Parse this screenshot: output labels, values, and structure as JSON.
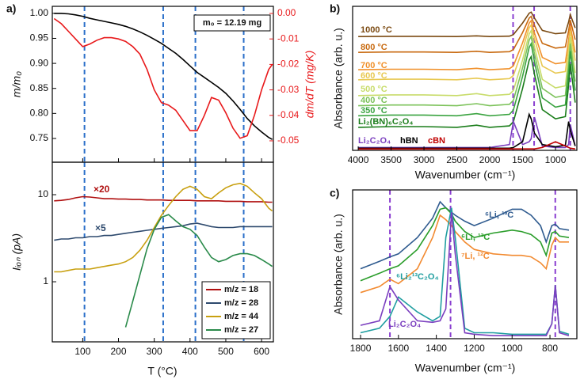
{
  "chart_data": [
    {
      "type": "line",
      "label": "a)",
      "ylabel": "m/m₀",
      "y2label": "dm/dT (mg/K)",
      "annotation": "m₀ = 12.19 mg",
      "x": [
        20,
        40,
        60,
        80,
        100,
        120,
        140,
        160,
        180,
        200,
        220,
        240,
        260,
        280,
        300,
        320,
        340,
        360,
        380,
        400,
        420,
        440,
        460,
        480,
        500,
        520,
        540,
        560,
        580,
        600,
        620,
        630
      ],
      "xlim": [
        15,
        633
      ],
      "ylim": [
        0.7025,
        1.014
      ],
      "yticks": [
        0.75,
        {
          "value": 0.8,
          "label": "0.80"
        },
        0.85,
        {
          "value": 0.9,
          "label": "0.90"
        },
        0.95,
        {
          "value": 1,
          "label": "1.00"
        }
      ],
      "y2lim": [
        -0.0584,
        0.0028
      ],
      "y2ticks": [
        -0.05,
        -0.04,
        -0.03,
        -0.02,
        -0.01,
        {
          "value": 0,
          "label": "0.00"
        }
      ],
      "vlines": [
        105,
        325,
        415,
        550
      ],
      "vline_color": "#2a6fc9",
      "series": [
        {
          "color": "#000000",
          "values": [
            1.0,
            1.0,
            0.999,
            0.997,
            0.994,
            0.99,
            0.987,
            0.984,
            0.981,
            0.978,
            0.974,
            0.969,
            0.963,
            0.956,
            0.948,
            0.94,
            0.93,
            0.92,
            0.908,
            0.895,
            0.882,
            0.872,
            0.862,
            0.852,
            0.84,
            0.825,
            0.808,
            0.79,
            0.775,
            0.763,
            0.752,
            0.748
          ]
        },
        {
          "color": "#e8191b",
          "axis": "y2",
          "values": [
            -0.002,
            -0.004,
            -0.007,
            -0.01,
            -0.013,
            -0.012,
            -0.0105,
            -0.0095,
            -0.0095,
            -0.01,
            -0.011,
            -0.013,
            -0.016,
            -0.022,
            -0.03,
            -0.035,
            -0.036,
            -0.038,
            -0.042,
            -0.046,
            -0.046,
            -0.04,
            -0.033,
            -0.034,
            -0.039,
            -0.045,
            -0.049,
            -0.048,
            -0.04,
            -0.03,
            -0.022,
            -0.02
          ]
        }
      ]
    },
    {
      "type": "line",
      "xlabel": "T (°C)",
      "ylabel": "Iᵢₒₙ (pA)",
      "log_y": true,
      "legend": "lower right",
      "annotations": [
        "×20",
        "×5"
      ],
      "x": [
        20,
        40,
        60,
        80,
        100,
        120,
        140,
        160,
        180,
        200,
        220,
        240,
        260,
        280,
        300,
        320,
        340,
        360,
        380,
        400,
        420,
        440,
        460,
        480,
        500,
        520,
        540,
        560,
        580,
        600,
        620,
        630
      ],
      "xlim": [
        15,
        633
      ],
      "xticks": [
        100,
        200,
        300,
        400,
        500,
        600
      ],
      "ylim": [
        0.204,
        23.6
      ],
      "yticks": [
        1,
        10
      ],
      "vlines": [
        105,
        325,
        415,
        550
      ],
      "vline_color": "#2a6fc9",
      "series": [
        {
          "name": "m/z = 18",
          "color": "#b01010",
          "values": [
            8.5,
            8.6,
            8.8,
            9.2,
            9.5,
            9.4,
            9.2,
            9.0,
            9.0,
            8.9,
            8.9,
            8.8,
            8.8,
            8.7,
            8.7,
            8.7,
            8.6,
            8.6,
            8.6,
            8.6,
            8.5,
            8.5,
            8.5,
            8.5,
            8.4,
            8.4,
            8.4,
            8.3,
            8.3,
            8.3,
            8.2,
            8.2
          ]
        },
        {
          "name": "m/z = 28",
          "color": "#2e4a6e",
          "values": [
            3.0,
            3.1,
            3.1,
            3.2,
            3.2,
            3.3,
            3.3,
            3.4,
            3.4,
            3.5,
            3.6,
            3.7,
            3.8,
            3.9,
            4.0,
            4.1,
            4.2,
            4.3,
            4.4,
            4.6,
            4.7,
            4.5,
            4.3,
            4.2,
            4.2,
            4.2,
            4.3,
            4.3,
            4.3,
            4.3,
            4.3,
            4.3
          ]
        },
        {
          "name": "m/z = 44",
          "color": "#c8a010",
          "values": [
            1.3,
            1.3,
            1.35,
            1.4,
            1.4,
            1.4,
            1.45,
            1.5,
            1.55,
            1.6,
            1.7,
            1.9,
            2.3,
            3.0,
            4.2,
            5.8,
            7.5,
            9.5,
            11.5,
            12.5,
            11.5,
            9.5,
            9.0,
            10.5,
            12.0,
            13.0,
            13.5,
            12.5,
            10.5,
            9.0,
            7.0,
            6.5
          ]
        },
        {
          "name": "m/z = 27",
          "color": "#2a8a4a",
          "values": [
            null,
            null,
            null,
            null,
            null,
            null,
            null,
            null,
            null,
            null,
            0.3,
            0.6,
            1.2,
            2.4,
            4.0,
            5.5,
            5.9,
            5.0,
            4.3,
            4.0,
            3.4,
            2.5,
            1.9,
            1.7,
            1.8,
            2.0,
            2.1,
            2.1,
            2.0,
            1.8,
            1.6,
            1.5
          ]
        }
      ]
    },
    {
      "type": "line",
      "label": "b)",
      "xlabel": "Wavenumber (cm⁻¹)",
      "ylabel": "Absorbance (arb. u.)",
      "x": [
        4000,
        3500,
        3000,
        2500,
        2200,
        2000,
        1700,
        1640,
        1500,
        1400,
        1370,
        1320,
        1200,
        1000,
        850,
        800,
        775,
        700
      ],
      "xlim": [
        4085,
        675
      ],
      "xticks": [
        4000,
        3500,
        3000,
        2500,
        2000,
        1500,
        1000
      ],
      "ylim": [
        0,
        10
      ],
      "vlines": [
        1645,
        1325,
        775
      ],
      "vline_color": "#8a3fd0",
      "series": [
        {
          "name": "1000 °C",
          "color": "#7b4a12",
          "values": [
            7.9,
            7.92,
            7.92,
            7.9,
            7.95,
            7.9,
            7.93,
            8.04,
            8.84,
            9.52,
            9.6,
            9.18,
            8.33,
            8.1,
            8.16,
            8.92,
            9.43,
            8.5
          ]
        },
        {
          "name": "800 °C",
          "color": "#c86a10",
          "values": [
            6.8,
            6.83,
            6.83,
            6.8,
            6.88,
            6.8,
            6.85,
            7.0,
            8.18,
            9.18,
            9.3,
            8.68,
            7.43,
            7.1,
            7.18,
            8.3,
            9.05,
            7.68
          ]
        },
        {
          "name": "700 °C",
          "color": "#f0902a",
          "values": [
            5.6,
            5.63,
            5.63,
            5.6,
            5.7,
            5.6,
            5.67,
            5.87,
            7.47,
            8.83,
            9.0,
            8.15,
            6.45,
            6.01,
            6.11,
            7.64,
            8.66,
            6.79
          ]
        },
        {
          "name": "600 °C",
          "color": "#e8c850",
          "values": [
            4.9,
            4.94,
            4.94,
            4.9,
            5.01,
            4.9,
            4.98,
            5.2,
            6.99,
            8.51,
            8.7,
            7.75,
            5.85,
            5.36,
            5.47,
            7.18,
            8.32,
            6.23
          ]
        },
        {
          "name": "500 °C",
          "color": "#c8dc6a",
          "values": [
            3.8,
            3.85,
            3.85,
            3.8,
            3.94,
            3.8,
            3.89,
            4.16,
            6.28,
            8.08,
            8.3,
            7.18,
            4.93,
            4.34,
            4.48,
            6.5,
            7.85,
            5.38
          ]
        },
        {
          "name": "400 °C",
          "color": "#7cc25a",
          "values": [
            3.1,
            3.15,
            3.15,
            3.1,
            3.24,
            3.1,
            3.2,
            3.48,
            5.74,
            7.66,
            7.9,
            6.7,
            4.3,
            3.68,
            3.82,
            5.98,
            7.42,
            4.78
          ]
        },
        {
          "name": "350 °C",
          "color": "#3aa340",
          "values": [
            2.4,
            2.45,
            2.45,
            2.4,
            2.55,
            2.4,
            2.5,
            2.8,
            5.15,
            7.15,
            7.4,
            6.15,
            3.65,
            3.0,
            3.15,
            5.4,
            6.9,
            4.15
          ]
        },
        {
          "name": "Li₂(BN)₆C₂O₄",
          "color": "#1a7d1a",
          "values": [
            1.6,
            1.65,
            1.65,
            1.6,
            1.75,
            1.6,
            1.7,
            1.99,
            4.3,
            6.26,
            6.5,
            5.28,
            2.83,
            2.19,
            2.34,
            4.54,
            6.01,
            3.32
          ]
        },
        {
          "name": "Li₂C₂O₄",
          "color": "#7b3fbf",
          "values": [
            0.2,
            0.2,
            0.2,
            0.2,
            0.2,
            0.2,
            0.4,
            2.0,
            0.4,
            0.6,
            0.8,
            2.3,
            0.3,
            0.2,
            0.2,
            0.4,
            1.8,
            0.3
          ]
        },
        {
          "name": "hBN",
          "color": "#000000",
          "values": [
            0.15,
            0.15,
            0.15,
            0.15,
            0.15,
            0.15,
            0.15,
            0.2,
            0.6,
            2.5,
            2.2,
            1.2,
            0.4,
            0.25,
            0.35,
            2.0,
            1.4,
            0.3
          ]
        },
        {
          "name": "cBN",
          "color": "#c00000",
          "values": [
            0.1,
            0.1,
            0.1,
            0.1,
            0.1,
            0.1,
            0.1,
            0.1,
            0.1,
            0.1,
            0.1,
            0.1,
            0.2,
            0.6,
            0.3,
            0.2,
            0.15,
            0.1
          ]
        }
      ]
    },
    {
      "type": "line",
      "label": "c)",
      "xlabel": "Wavenumber (cm⁻¹)",
      "ylabel": "Absorbance (arb. u.)",
      "x": [
        1800,
        1700,
        1645,
        1600,
        1500,
        1420,
        1380,
        1350,
        1320,
        1300,
        1250,
        1200,
        1100,
        1000,
        950,
        900,
        850,
        820,
        790,
        772,
        750,
        700
      ],
      "xlim": [
        1842,
        658
      ],
      "xticks": [
        1800,
        1600,
        1400,
        1200,
        1000,
        800
      ],
      "ylim": [
        0,
        10
      ],
      "vlines": [
        1645,
        1325,
        772
      ],
      "vline_color": "#8a3fd0",
      "series": [
        {
          "name": "⁶Li, ¹³C",
          "color": "#2f5b8f",
          "values": [
            4.7,
            5.2,
            5.5,
            5.7,
            6.8,
            8.1,
            9.2,
            8.8,
            8.5,
            8.3,
            7.9,
            7.6,
            8.1,
            8.7,
            8.7,
            8.3,
            7.6,
            6.5,
            7.6,
            7.7,
            7.4,
            7.3
          ]
        },
        {
          "name": "⁶Li, ¹²C",
          "color": "#2a9d2a",
          "values": [
            3.9,
            4.4,
            4.7,
            4.9,
            6.0,
            7.6,
            8.7,
            8.8,
            8.4,
            7.9,
            7.2,
            6.8,
            7.1,
            7.3,
            7.2,
            7.0,
            6.5,
            5.6,
            7.1,
            7.2,
            6.9,
            6.8
          ]
        },
        {
          "name": "⁷Li, ¹²C",
          "color": "#f28a30",
          "values": [
            3.1,
            3.5,
            4.0,
            3.7,
            4.7,
            6.8,
            8.3,
            8.0,
            7.6,
            7.2,
            6.5,
            6.0,
            5.7,
            5.6,
            5.6,
            5.5,
            5.1,
            4.7,
            6.3,
            6.8,
            6.5,
            6.5
          ]
        },
        {
          "name": "⁶Li₂¹³C₂O₄",
          "color": "#1f9ea0",
          "values": [
            0.4,
            0.7,
            1.5,
            2.8,
            1.8,
            1.2,
            1.5,
            6.8,
            8.8,
            6.8,
            0.7,
            0.4,
            0.4,
            0.3,
            0.3,
            0.3,
            0.3,
            0.3,
            1.0,
            3.6,
            0.5,
            0.3
          ]
        },
        {
          "name": "Li₂C₂O₄",
          "color": "#7b3fbf",
          "values": [
            0.9,
            1.2,
            3.5,
            2.6,
            1.2,
            1.1,
            1.2,
            2.0,
            8.5,
            5.7,
            0.4,
            0.3,
            0.2,
            0.2,
            0.2,
            0.2,
            0.2,
            0.2,
            1.0,
            3.6,
            0.4,
            0.2
          ]
        }
      ]
    }
  ]
}
